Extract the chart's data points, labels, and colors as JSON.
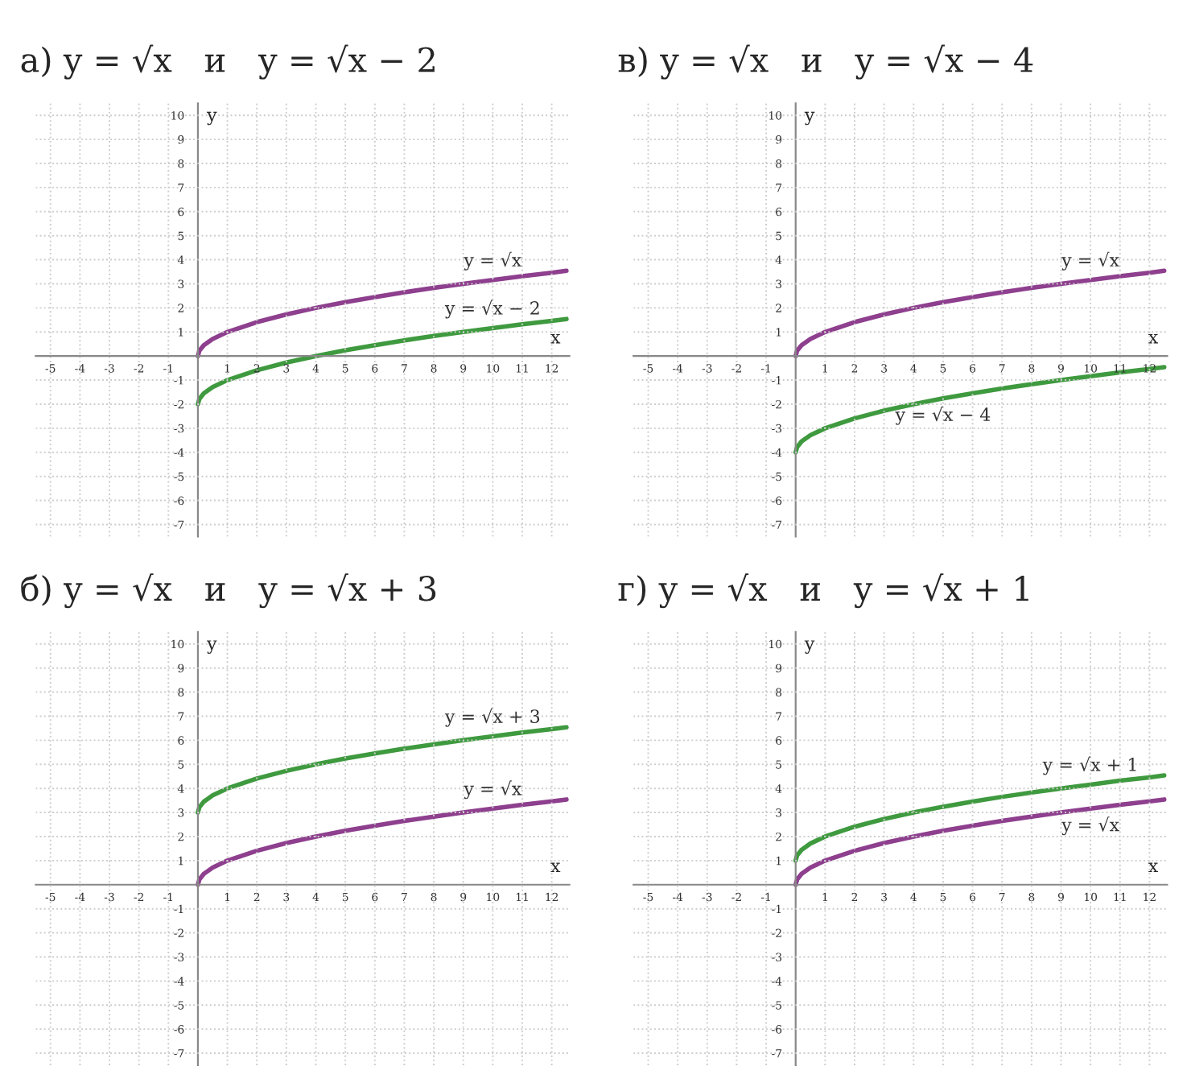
{
  "chart_data": [
    {
      "type": "line",
      "title": "а) y = √x   и   y = √x − 2",
      "xlabel": "x",
      "ylabel": "y",
      "x": [
        0,
        0.05,
        0.2,
        0.5,
        1,
        2,
        3,
        4,
        5,
        6,
        7,
        8,
        9,
        10,
        11,
        12,
        12.5
      ],
      "series": [
        {
          "name": "y = √x",
          "color": "#8e3f8e",
          "values": [
            0,
            0.22,
            0.45,
            0.71,
            1,
            1.41,
            1.73,
            2,
            2.24,
            2.45,
            2.65,
            2.83,
            3,
            3.16,
            3.32,
            3.46,
            3.54
          ]
        },
        {
          "name": "y = √x − 2",
          "color": "#3f9a3f",
          "values": [
            -2,
            -1.78,
            -1.55,
            -1.29,
            -1,
            -0.59,
            -0.27,
            0,
            0.24,
            0.45,
            0.65,
            0.83,
            1,
            1.16,
            1.32,
            1.46,
            1.54
          ]
        }
      ],
      "xlim": [
        -5.5,
        12.6
      ],
      "ylim": [
        -7.5,
        10.5
      ],
      "xticks": [
        -5,
        -4,
        -3,
        -2,
        -1,
        1,
        2,
        3,
        4,
        5,
        6,
        7,
        8,
        9,
        10,
        11,
        12
      ],
      "yticks": [
        -7,
        -6,
        -5,
        -4,
        -3,
        -2,
        -1,
        1,
        2,
        3,
        4,
        5,
        6,
        7,
        8,
        9,
        10
      ],
      "grid": true
    },
    {
      "type": "line",
      "title": "в) y = √x   и   y = √x − 4",
      "xlabel": "x",
      "ylabel": "y",
      "x": [
        0,
        0.05,
        0.2,
        0.5,
        1,
        2,
        3,
        4,
        5,
        6,
        7,
        8,
        9,
        10,
        11,
        12,
        12.5
      ],
      "series": [
        {
          "name": "y = √x",
          "color": "#8e3f8e",
          "values": [
            0,
            0.22,
            0.45,
            0.71,
            1,
            1.41,
            1.73,
            2,
            2.24,
            2.45,
            2.65,
            2.83,
            3,
            3.16,
            3.32,
            3.46,
            3.54
          ]
        },
        {
          "name": "y = √x − 4",
          "color": "#3f9a3f",
          "values": [
            -4,
            -3.78,
            -3.55,
            -3.29,
            -3,
            -2.59,
            -2.27,
            -2,
            -1.76,
            -1.55,
            -1.35,
            -1.17,
            -1,
            -0.84,
            -0.68,
            -0.54,
            -0.46
          ]
        }
      ],
      "xlim": [
        -5.5,
        12.6
      ],
      "ylim": [
        -7.5,
        10.5
      ],
      "xticks": [
        -5,
        -4,
        -3,
        -2,
        -1,
        1,
        2,
        3,
        4,
        5,
        6,
        7,
        8,
        9,
        10,
        11,
        12
      ],
      "yticks": [
        -7,
        -6,
        -5,
        -4,
        -3,
        -2,
        -1,
        1,
        2,
        3,
        4,
        5,
        6,
        7,
        8,
        9,
        10
      ],
      "grid": true
    },
    {
      "type": "line",
      "title": "б) y = √x   и   y = √x + 3",
      "xlabel": "x",
      "ylabel": "y",
      "x": [
        0,
        0.05,
        0.2,
        0.5,
        1,
        2,
        3,
        4,
        5,
        6,
        7,
        8,
        9,
        10,
        11,
        12,
        12.5
      ],
      "series": [
        {
          "name": "y = √x",
          "color": "#8e3f8e",
          "values": [
            0,
            0.22,
            0.45,
            0.71,
            1,
            1.41,
            1.73,
            2,
            2.24,
            2.45,
            2.65,
            2.83,
            3,
            3.16,
            3.32,
            3.46,
            3.54
          ]
        },
        {
          "name": "y = √x + 3",
          "color": "#3f9a3f",
          "values": [
            3,
            3.22,
            3.45,
            3.71,
            4,
            4.41,
            4.73,
            5,
            5.24,
            5.45,
            5.65,
            5.83,
            6,
            6.16,
            6.32,
            6.46,
            6.54
          ]
        }
      ],
      "xlim": [
        -5.5,
        12.6
      ],
      "ylim": [
        -7.5,
        10.5
      ],
      "xticks": [
        -5,
        -4,
        -3,
        -2,
        -1,
        1,
        2,
        3,
        4,
        5,
        6,
        7,
        8,
        9,
        10,
        11,
        12
      ],
      "yticks": [
        -7,
        -6,
        -5,
        -4,
        -3,
        -2,
        -1,
        1,
        2,
        3,
        4,
        5,
        6,
        7,
        8,
        9,
        10
      ],
      "grid": true
    },
    {
      "type": "line",
      "title": "г) y = √x   и   y = √x + 1",
      "xlabel": "x",
      "ylabel": "y",
      "x": [
        0,
        0.05,
        0.2,
        0.5,
        1,
        2,
        3,
        4,
        5,
        6,
        7,
        8,
        9,
        10,
        11,
        12,
        12.5
      ],
      "series": [
        {
          "name": "y = √x",
          "color": "#8e3f8e",
          "values": [
            0,
            0.22,
            0.45,
            0.71,
            1,
            1.41,
            1.73,
            2,
            2.24,
            2.45,
            2.65,
            2.83,
            3,
            3.16,
            3.32,
            3.46,
            3.54
          ]
        },
        {
          "name": "y = √x + 1",
          "color": "#3f9a3f",
          "values": [
            1,
            1.22,
            1.45,
            1.71,
            2,
            2.41,
            2.73,
            3,
            3.24,
            3.45,
            3.65,
            3.83,
            4,
            4.16,
            4.32,
            4.46,
            4.54
          ]
        }
      ],
      "xlim": [
        -5.5,
        12.6
      ],
      "ylim": [
        -7.5,
        10.5
      ],
      "xticks": [
        -5,
        -4,
        -3,
        -2,
        -1,
        1,
        2,
        3,
        4,
        5,
        6,
        7,
        8,
        9,
        10,
        11,
        12
      ],
      "yticks": [
        -7,
        -6,
        -5,
        -4,
        -3,
        -2,
        -1,
        1,
        2,
        3,
        4,
        5,
        6,
        7,
        8,
        9,
        10
      ],
      "grid": true
    }
  ]
}
